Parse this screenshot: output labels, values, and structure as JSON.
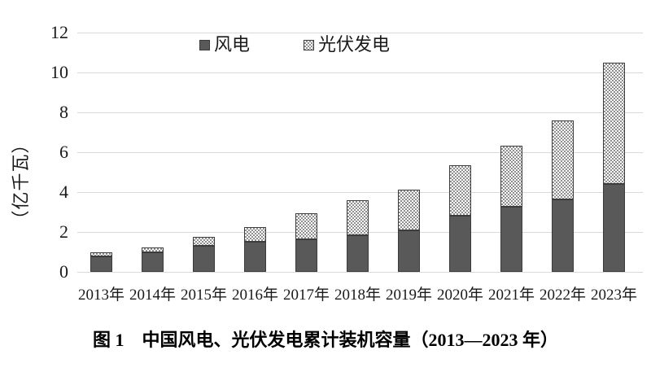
{
  "figure": {
    "caption": "图 1　中国风电、光伏发电累计装机容量（2013—2023 年）"
  },
  "chart_data": {
    "type": "bar",
    "stacked": true,
    "title": "",
    "xlabel": "",
    "ylabel": "（亿千瓦）",
    "ylim": [
      0,
      12
    ],
    "yticks": [
      0,
      2,
      4,
      6,
      8,
      10,
      12
    ],
    "grid": "horizontal",
    "legend_position": "top-center",
    "categories": [
      "2013年",
      "2014年",
      "2015年",
      "2016年",
      "2017年",
      "2018年",
      "2019年",
      "2020年",
      "2021年",
      "2022年",
      "2023年"
    ],
    "series": [
      {
        "name": "风电",
        "pattern": "solid",
        "color": "#595959",
        "values": [
          0.77,
          0.96,
          1.31,
          1.49,
          1.64,
          1.84,
          2.1,
          2.81,
          3.28,
          3.65,
          4.41
        ]
      },
      {
        "name": "光伏发电",
        "pattern": "dotted-checker",
        "color": "#8f8f8f",
        "values": [
          0.19,
          0.28,
          0.43,
          0.77,
          1.3,
          1.74,
          2.04,
          2.53,
          3.06,
          3.93,
          6.09
        ]
      }
    ],
    "totals": [
      0.96,
      1.24,
      1.74,
      2.26,
      2.94,
      3.58,
      4.14,
      5.34,
      6.34,
      7.58,
      10.5
    ],
    "colors": {
      "gridline": "#d9d9d9",
      "bar_border": "#3c3c3c",
      "text": "#1a1a1a"
    }
  }
}
